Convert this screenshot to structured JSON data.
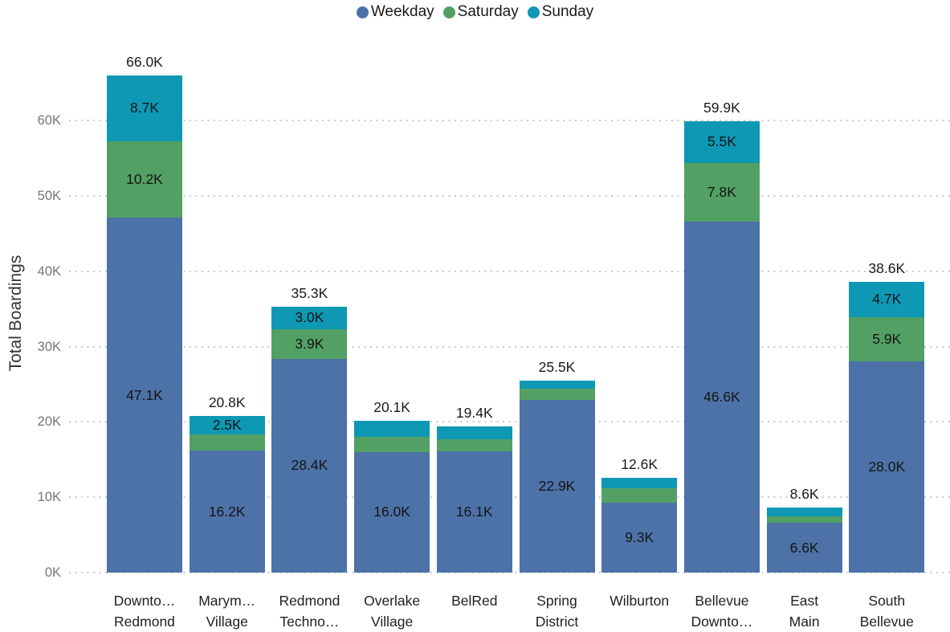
{
  "legend": {
    "items": [
      {
        "label": "Weekday",
        "color": "#4c72a8",
        "icon": "circle-swatch"
      },
      {
        "label": "Saturday",
        "color": "#52a064",
        "icon": "circle-swatch"
      },
      {
        "label": "Sunday",
        "color": "#0e98b4",
        "icon": "circle-swatch"
      }
    ]
  },
  "y_axis": {
    "title": "Total Boardings",
    "unit": "K",
    "tick_values": [
      0,
      10,
      20,
      30,
      40,
      50,
      60
    ],
    "tick_labels": [
      "0K",
      "10K",
      "20K",
      "30K",
      "40K",
      "50K",
      "60K"
    ]
  },
  "chart_data": {
    "type": "bar",
    "stacked": true,
    "title": "",
    "xlabel": "",
    "ylabel": "Total Boardings",
    "ylim": [
      0,
      66
    ],
    "grid": "dotted-horizontal",
    "legend_position": "top-center",
    "categories": [
      "Downto… Redmond",
      "Marym… Village",
      "Redmond Techno…",
      "Overlake Village",
      "BelRed",
      "Spring District",
      "Wilburton",
      "Bellevue Downto…",
      "East Main",
      "South Bellevue"
    ],
    "category_lines": [
      [
        "Downto…",
        "Redmond"
      ],
      [
        "Marym…",
        "Village"
      ],
      [
        "Redmond",
        "Techno…"
      ],
      [
        "Overlake",
        "Village"
      ],
      [
        "BelRed"
      ],
      [
        "Spring",
        "District"
      ],
      [
        "Wilburton"
      ],
      [
        "Bellevue",
        "Downto…"
      ],
      [
        "East",
        "Main"
      ],
      [
        "South",
        "Bellevue"
      ]
    ],
    "series": [
      {
        "name": "Weekday",
        "color": "#4c72a8",
        "values": [
          47.1,
          16.2,
          28.4,
          16.0,
          16.1,
          22.9,
          9.3,
          46.6,
          6.6,
          28.0
        ],
        "labels": [
          "47.1K",
          "16.2K",
          "28.4K",
          "16.0K",
          "16.1K",
          "22.9K",
          "9.3K",
          "46.6K",
          "6.6K",
          "28.0K"
        ]
      },
      {
        "name": "Saturday",
        "color": "#52a064",
        "values": [
          10.2,
          2.1,
          3.9,
          2.0,
          1.6,
          1.5,
          1.9,
          7.8,
          0.9,
          5.9
        ],
        "labels": [
          "10.2K",
          null,
          "3.9K",
          null,
          null,
          null,
          null,
          "7.8K",
          null,
          "5.9K"
        ]
      },
      {
        "name": "Sunday",
        "color": "#0e98b4",
        "values": [
          8.7,
          2.5,
          3.0,
          2.1,
          1.7,
          1.1,
          1.4,
          5.5,
          1.1,
          4.7
        ],
        "labels": [
          "8.7K",
          "2.5K",
          "3.0K",
          null,
          null,
          null,
          null,
          "5.5K",
          null,
          "4.7K"
        ]
      }
    ],
    "totals": {
      "values": [
        66.0,
        20.8,
        35.3,
        20.1,
        19.4,
        25.5,
        12.6,
        59.9,
        8.6,
        38.6
      ],
      "labels": [
        "66.0K",
        "20.8K",
        "35.3K",
        "20.1K",
        "19.4K",
        "25.5K",
        "12.6K",
        "59.9K",
        "8.6K",
        "38.6K"
      ]
    }
  }
}
